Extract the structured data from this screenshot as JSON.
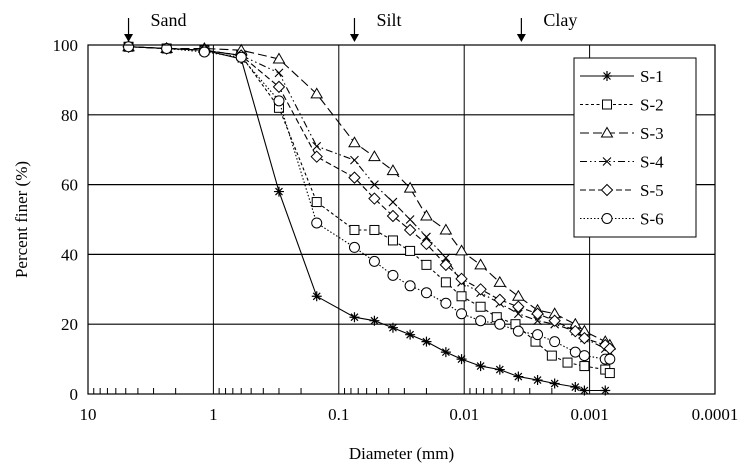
{
  "chart_data": {
    "type": "line",
    "title": "",
    "xlabel": "Diameter (mm)",
    "ylabel": "Percent finer (%)",
    "x_scale": "log",
    "x_reversed": true,
    "xlim": [
      10,
      0.0001
    ],
    "ylim": [
      0,
      100
    ],
    "x_ticks": [
      10,
      1,
      0.1,
      0.01,
      0.001,
      0.0001
    ],
    "x_tick_labels": [
      "10",
      "1",
      "0.1",
      "0.01",
      "0.001",
      "0.0001"
    ],
    "y_ticks": [
      0,
      20,
      40,
      60,
      80,
      100
    ],
    "y_tick_labels": [
      "0",
      "20",
      "40",
      "60",
      "80",
      "100"
    ],
    "grid": true,
    "legend_position": "top-right",
    "annotations": [
      {
        "text": "Sand",
        "x": 4.75
      },
      {
        "text": "Silt",
        "x": 0.075
      },
      {
        "text": "Clay",
        "x": 0.0035
      }
    ],
    "series": [
      {
        "name": "S-1",
        "marker": "star",
        "dash": "solid",
        "x": [
          4.75,
          2.36,
          1.18,
          0.6,
          0.3,
          0.15,
          0.075,
          0.052,
          0.037,
          0.027,
          0.02,
          0.014,
          0.0105,
          0.0074,
          0.0052,
          0.0037,
          0.0026,
          0.0019,
          0.0013,
          0.0011,
          0.00075
        ],
        "y": [
          99.5,
          99,
          98.5,
          96,
          58,
          28,
          22,
          21,
          19,
          17,
          15,
          12,
          10,
          8,
          7,
          5,
          4,
          3,
          2,
          1,
          1
        ]
      },
      {
        "name": "S-2",
        "marker": "square",
        "dash": "short",
        "x": [
          4.75,
          2.36,
          1.18,
          0.6,
          0.3,
          0.15,
          0.075,
          0.052,
          0.037,
          0.027,
          0.02,
          0.014,
          0.0105,
          0.0074,
          0.0055,
          0.0039,
          0.0027,
          0.002,
          0.0015,
          0.0011,
          0.00075,
          0.00069
        ],
        "y": [
          99.5,
          99,
          98.5,
          97,
          82,
          55,
          47,
          47,
          44,
          41,
          37,
          32,
          28,
          25,
          22,
          20,
          15,
          11,
          9,
          8,
          7,
          6
        ]
      },
      {
        "name": "S-3",
        "marker": "triangle",
        "dash": "long",
        "x": [
          4.75,
          2.36,
          1.18,
          0.6,
          0.3,
          0.15,
          0.075,
          0.052,
          0.037,
          0.027,
          0.02,
          0.014,
          0.0105,
          0.0074,
          0.0052,
          0.0037,
          0.0026,
          0.0019,
          0.0013,
          0.0011,
          0.00075,
          0.00069
        ],
        "y": [
          99.5,
          99,
          99,
          98.5,
          96,
          86,
          72,
          68,
          64,
          59,
          51,
          47,
          41,
          37,
          32,
          28,
          24,
          23,
          20,
          18,
          15,
          14
        ]
      },
      {
        "name": "S-4",
        "marker": "x",
        "dash": "dashdotdot",
        "x": [
          4.75,
          2.36,
          1.18,
          0.6,
          0.3,
          0.15,
          0.075,
          0.052,
          0.037,
          0.027,
          0.02,
          0.014,
          0.0105,
          0.0074,
          0.0052,
          0.0037,
          0.0026,
          0.0019,
          0.0013,
          0.0011,
          0.00075,
          0.00069
        ],
        "y": [
          99.5,
          99,
          98.5,
          97,
          92,
          71,
          67,
          60,
          55,
          50,
          45,
          39,
          32,
          29,
          26,
          23,
          21,
          20,
          18,
          16,
          13,
          12
        ]
      },
      {
        "name": "S-5",
        "marker": "diamond",
        "dash": "medium",
        "x": [
          4.75,
          2.36,
          1.18,
          0.6,
          0.3,
          0.15,
          0.075,
          0.052,
          0.037,
          0.027,
          0.02,
          0.014,
          0.0105,
          0.0074,
          0.0052,
          0.0037,
          0.0026,
          0.0019,
          0.0013,
          0.0011,
          0.00075,
          0.00069
        ],
        "y": [
          99.5,
          99,
          98.5,
          97,
          88,
          68,
          62,
          56,
          51,
          47,
          43,
          37,
          33,
          30,
          27,
          25,
          23,
          21,
          18,
          16,
          14,
          13
        ]
      },
      {
        "name": "S-6",
        "marker": "circle",
        "dash": "dotted",
        "x": [
          4.75,
          2.36,
          1.18,
          0.6,
          0.3,
          0.15,
          0.075,
          0.052,
          0.037,
          0.027,
          0.02,
          0.014,
          0.0105,
          0.0074,
          0.0052,
          0.0037,
          0.0026,
          0.0019,
          0.0013,
          0.0011,
          0.00075,
          0.00069
        ],
        "y": [
          99.5,
          99,
          98,
          96.5,
          84,
          49,
          42,
          38,
          34,
          31,
          29,
          26,
          23,
          21,
          20,
          18,
          17,
          15,
          12,
          11,
          10,
          10
        ]
      }
    ]
  }
}
